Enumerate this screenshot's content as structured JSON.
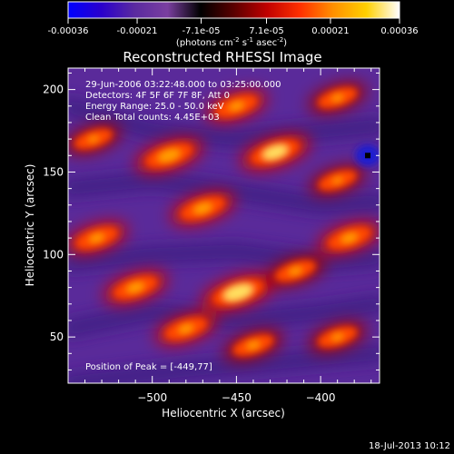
{
  "chart_data": {
    "type": "heatmap",
    "title": "Reconstructed RHESSI Image",
    "xlabel": "Heliocentric X (arcsec)",
    "ylabel": "Heliocentric Y (arcsec)",
    "xlim": [
      -550,
      -365
    ],
    "ylim": [
      22,
      213
    ],
    "x_ticks": [
      -500,
      -450,
      -400
    ],
    "y_ticks": [
      50,
      100,
      150,
      200
    ],
    "colorbar": {
      "min": -0.00036,
      "max": 0.00036,
      "ticks": [
        "-0.00036",
        "-0.00021",
        "-7.1e-05",
        "7.1e-05",
        "0.00021",
        "0.00036"
      ],
      "unit_prefix": "(photons cm",
      "unit_suffix": " s",
      "unit_mid": " asec",
      "unit_end": ")",
      "exponent": "-2",
      "exponent2": "-1",
      "exponent3": "-2",
      "colors": [
        "#0000ff",
        "#2a00cc",
        "#5a2aa0",
        "#7a3fa0",
        "#000000",
        "#5a0000",
        "#c00000",
        "#ff3000",
        "#ff9000",
        "#ffd000",
        "#ffffff"
      ]
    },
    "annotations": [
      "29-Jun-2006 03:22:48.000 to 03:25:00.000",
      "Detectors: 4F 5F 6F 7F 8F, Att 0",
      "Energy Range: 25.0 - 50.0 keV",
      "Clean     Total counts: 4.45E+03"
    ],
    "peak_label": "Position of Peak = [-449,77]",
    "peak": [
      -449,
      77
    ],
    "bright_blobs": [
      {
        "x": -449,
        "y": 77,
        "value": 0.00036
      },
      {
        "x": -490,
        "y": 160,
        "value": 0.0003
      },
      {
        "x": -427,
        "y": 162,
        "value": 0.00032
      },
      {
        "x": -470,
        "y": 128,
        "value": 0.00026
      },
      {
        "x": -533,
        "y": 110,
        "value": 0.00022
      },
      {
        "x": -383,
        "y": 110,
        "value": 0.00024
      },
      {
        "x": -510,
        "y": 80,
        "value": 0.00025
      },
      {
        "x": -415,
        "y": 90,
        "value": 0.0002
      },
      {
        "x": -450,
        "y": 190,
        "value": 0.00022
      },
      {
        "x": -390,
        "y": 195,
        "value": 0.00018
      },
      {
        "x": -480,
        "y": 55,
        "value": 0.00022
      },
      {
        "x": -440,
        "y": 45,
        "value": 0.0002
      },
      {
        "x": -390,
        "y": 50,
        "value": 0.00018
      },
      {
        "x": -535,
        "y": 170,
        "value": 0.00016
      },
      {
        "x": -390,
        "y": 145,
        "value": 0.00016
      }
    ],
    "min_position": [
      -372,
      160
    ]
  },
  "footer_date": "18-Jul-2013 10:12"
}
